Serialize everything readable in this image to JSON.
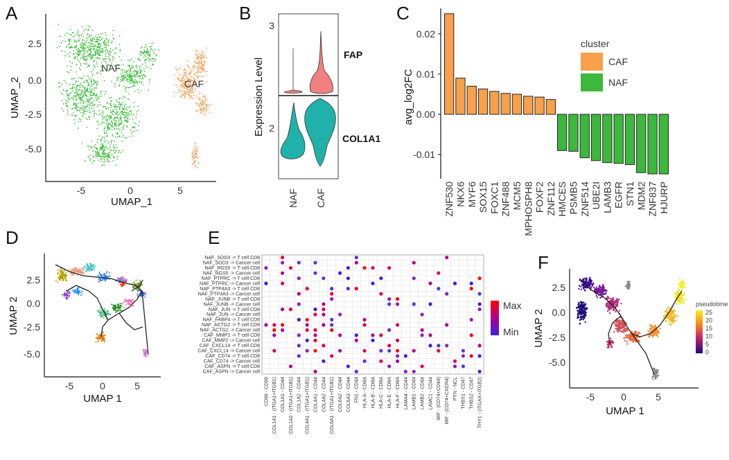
{
  "panels": {
    "A": {
      "label": "A",
      "xlabel": "UMAP_1",
      "ylabel": "UMAP_2",
      "xticks": [
        "-5",
        "0",
        "5"
      ],
      "yticks": [
        "2.5",
        "0.0",
        "-2.5",
        "-5.0"
      ],
      "cluster_labels": [
        "NAF",
        "CAF"
      ],
      "colors": {
        "NAF": "#3fbf3f",
        "CAF": "#f4a460"
      }
    },
    "B": {
      "label": "B",
      "ylabel": "Expression Level",
      "genes": [
        "FAP",
        "COL1A1"
      ],
      "yticks_top": [
        "3"
      ],
      "yticks_bottom": [
        "2"
      ],
      "groups": [
        "NAF",
        "CAF"
      ],
      "colors": {
        "FAP": "#f08080",
        "COL1A1": "#20b2aa"
      }
    },
    "C": {
      "label": "C",
      "legend_title": "cluster",
      "legend_items": [
        "CAF",
        "NAF"
      ],
      "colors": {
        "CAF": "#f9a04a",
        "NAF": "#3cb83c"
      }
    },
    "D": {
      "label": "D",
      "xlabel": "UMAP 1",
      "ylabel": "UMAP 2",
      "xticks": [
        "-5",
        "0",
        "5"
      ],
      "yticks": [
        "2.5",
        "0.0",
        "-2.5",
        "-5.0"
      ]
    },
    "E": {
      "label": "E",
      "rows": [
        "NAF_SOD3 -> T cell CD8",
        "NAF_SOD3 -> Cancer cell",
        "NAF_RGS5 -> T cell CD8",
        "NAF_RGS5 -> Cancer cell",
        "NAF_PTPRC -> T cell CD8",
        "NAF_PTPRC -> Cancer cell",
        "NAF_PTP4A3 -> T cell CD8",
        "NAF_PTP4A3 -> Cancer cell",
        "NAF_JUNB -> T cell CD8",
        "NAF_JUNB -> Cancer cell",
        "NAF_JUN -> T cell CD8",
        "NAF_JUN -> Cancer cell",
        "NAF_FABP4 -> T cell CD8",
        "NAF_ACTG2 -> T cell CD8",
        "NAF_ACTG2 -> Cancer cell",
        "CAF_MMP2 -> T cell CD8",
        "CAF_MMP2 -> Cancer cell",
        "CAF_CXCL14 -> T cell CD8",
        "CAF_CXCL14 -> Cancer cell",
        "CAF_CD74 -> T cell CD8",
        "CAF_CD74 -> Cancer cell",
        "CAF_ASPN -> T cell CD8",
        "CAF_ASPN -> Cancer cell"
      ],
      "cols": [
        "CD99 - CD99",
        "COL1A1 - (ITGA1+ITGB1)",
        "COL1A1 - CD44",
        "COL1A2 - (ITGA1+ITGB1)",
        "COL1A2 - CD44",
        "COL4A1 - (ITGA1+ITGB1)",
        "COL4A1 - CD44",
        "COL4A2 - CD44",
        "COL6A1 - (ITGA1+ITGB1)",
        "COL6A2 - CD44",
        "COL6A3 - CD44",
        "FN1 - CD44",
        "HLA-A - CD8A",
        "HLA-B - CD8A",
        "HLA-C - CD8A",
        "HLA-E - CD8A",
        "HLA-F - CD8A",
        "LAMA4 - CD44",
        "LAMB1 - CD44",
        "LAMB2 - CD44",
        "LAMC1 - CD44",
        "MIF - (CD74+CD44)",
        "MIF - (CD74+CXCR4)",
        "PTN - NCL",
        "THBS1 - CD47",
        "THBS2 - CD47",
        "THY1 - (ITGAX+ITGB2)"
      ],
      "legend": [
        "Max",
        "Min"
      ]
    },
    "F": {
      "label": "F",
      "xlabel": "UMAP 1",
      "ylabel": "UMAP 2",
      "xticks": [
        "-5",
        "0",
        "5"
      ],
      "yticks": [
        "2.5",
        "0.0",
        "-2.5",
        "-5.0"
      ],
      "legend_title": "pseudotime",
      "legend_ticks": [
        "25",
        "20",
        "15",
        "10",
        "5",
        "0"
      ]
    }
  },
  "chart_data": {
    "type": "bar",
    "title": "",
    "xlabel": "",
    "ylabel": "avg_log2FC",
    "ylim": [
      -0.016,
      0.026
    ],
    "yticks": [
      "0.02",
      "0.01",
      "0.00",
      "-0.01"
    ],
    "categories": [
      "ZNF530",
      "NKX6",
      "MYF6",
      "SOX15",
      "FOXC1",
      "ZNF488",
      "MCM5",
      "MPHOSPH8",
      "FOXF2",
      "ZNF112",
      "HMCES",
      "PSMB5",
      "ZNF514",
      "UBE2I",
      "LAMB3",
      "EGFR",
      "STN1",
      "MDM2",
      "ZNF837",
      "HJURP"
    ],
    "values": [
      0.025,
      0.009,
      0.007,
      0.0063,
      0.0057,
      0.0052,
      0.005,
      0.0045,
      0.0043,
      0.0037,
      -0.009,
      -0.0092,
      -0.0108,
      -0.0115,
      -0.012,
      -0.0122,
      -0.0125,
      -0.0145,
      -0.0148,
      -0.0148
    ],
    "cluster": [
      "CAF",
      "CAF",
      "CAF",
      "CAF",
      "CAF",
      "CAF",
      "CAF",
      "CAF",
      "CAF",
      "CAF",
      "NAF",
      "NAF",
      "NAF",
      "NAF",
      "NAF",
      "NAF",
      "NAF",
      "NAF",
      "NAF",
      "NAF"
    ]
  }
}
